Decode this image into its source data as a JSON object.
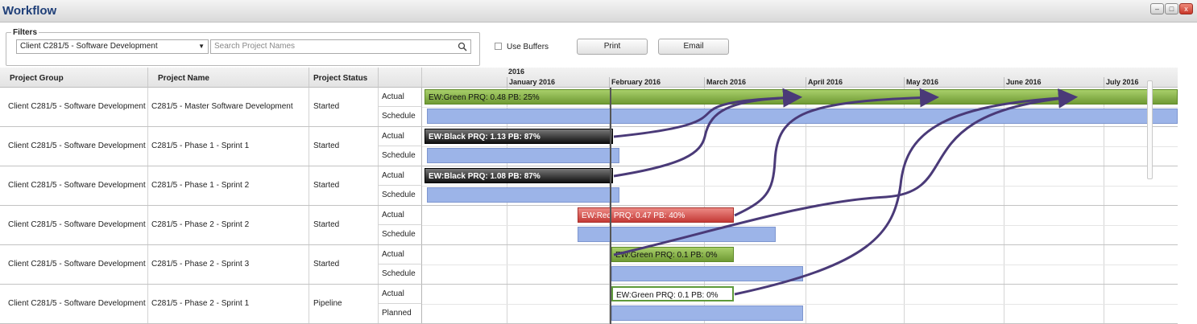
{
  "window": {
    "title": "Workflow",
    "minimize": "–",
    "maximize": "□",
    "close": "x"
  },
  "filters": {
    "legend": "Filters",
    "client": "Client C281/5 - Software Development",
    "search_placeholder": "Search Project Names",
    "use_buffers": "Use Buffers",
    "print": "Print",
    "email": "Email"
  },
  "columns": {
    "group": "Project Group",
    "name": "Project Name",
    "status": "Project Status"
  },
  "timeline": {
    "year": "2016",
    "months": [
      "January 2016",
      "February 2016",
      "March 2016",
      "April 2016",
      "May 2016",
      "June 2016",
      "July 2016"
    ]
  },
  "rows": [
    {
      "group": "Client C281/5 - Software Development",
      "name": "C281/5 - Master Software Development",
      "status": "Started",
      "sub1": "Actual",
      "sub2": "Schedule",
      "bar_label": "EW:Green PRQ: 0.48 PB: 25%"
    },
    {
      "group": "Client C281/5 - Software Development",
      "name": "C281/5 - Phase 1 - Sprint 1",
      "status": "Started",
      "sub1": "Actual",
      "sub2": "Schedule",
      "bar_label": "EW:Black PRQ: 1.13 PB: 87%"
    },
    {
      "group": "Client C281/5 - Software Development",
      "name": "C281/5 - Phase 1 - Sprint 2",
      "status": "Started",
      "sub1": "Actual",
      "sub2": "Schedule",
      "bar_label": "EW:Black PRQ: 1.08 PB: 87%"
    },
    {
      "group": "Client C281/5 - Software Development",
      "name": "C281/5 - Phase 2 - Sprint 2",
      "status": "Started",
      "sub1": "Actual",
      "sub2": "Schedule",
      "bar_label": "EW:Red PRQ: 0.47 PB: 40%"
    },
    {
      "group": "Client C281/5 - Software Development",
      "name": "C281/5 - Phase 2 - Sprint 3",
      "status": "Started",
      "sub1": "Actual",
      "sub2": "Schedule",
      "bar_label": "EW:Green PRQ: 0.1 PB: 0%"
    },
    {
      "group": "Client C281/5 - Software Development",
      "name": "C281/5 - Phase 2 - Sprint 1",
      "status": "Pipeline",
      "sub1": "Actual",
      "sub2": "Planned",
      "bar_label": "EW:Green PRQ: 0.1 PB: 0%"
    }
  ],
  "colors": {
    "arrow": "#4a3a78",
    "today_line": "#555555",
    "green": "#8ab54c",
    "red": "#d6524d",
    "schedule": "#9cb4e8"
  }
}
